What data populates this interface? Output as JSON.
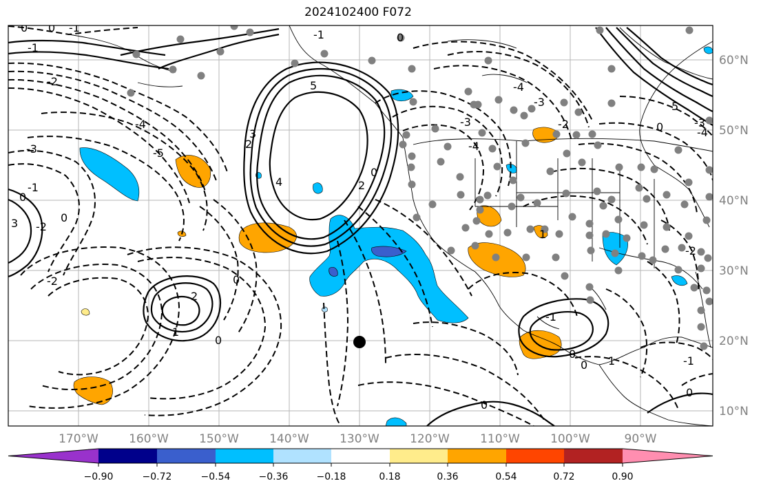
{
  "title": "2024102400 F072",
  "map": {
    "lon_labels": [
      "170°W",
      "160°W",
      "150°W",
      "140°W",
      "130°W",
      "120°W",
      "110°W",
      "100°W",
      "90°W"
    ],
    "lat_labels": [
      "60°N",
      "50°N",
      "40°N",
      "30°N",
      "20°N",
      "10°N"
    ],
    "marker": "storm-center-dot"
  },
  "colorbar": {
    "colors": [
      "#9932cc",
      "#00008b",
      "#3a5fcd",
      "#00bfff",
      "#b0e2ff",
      "#ffffff",
      "#ffec8b",
      "#ffa500",
      "#ff4500",
      "#b22222",
      "#ff8eb0"
    ],
    "ticks": [
      "−0.90",
      "−0.72",
      "−0.54",
      "−0.36",
      "−0.18",
      "0.18",
      "0.36",
      "0.54",
      "0.72",
      "0.90"
    ]
  },
  "contour_labels": [
    {
      "text": "-1",
      "group": "nw"
    },
    {
      "text": "-2",
      "group": "nw"
    },
    {
      "text": "-3",
      "group": "nw"
    },
    {
      "text": "-4",
      "group": "nw"
    },
    {
      "text": "-5",
      "group": "nw"
    },
    {
      "text": "-1",
      "group": "nw"
    },
    {
      "text": "0",
      "group": "w"
    },
    {
      "text": "-2",
      "group": "w"
    },
    {
      "text": "3",
      "group": "w"
    },
    {
      "text": "0",
      "group": "w"
    },
    {
      "text": "5",
      "group": "gulf-alaska-high"
    },
    {
      "text": "4",
      "group": "gulf-alaska-high"
    },
    {
      "text": "3",
      "group": "gulf-alaska-high"
    },
    {
      "text": "2",
      "group": "gulf-alaska-high"
    },
    {
      "text": "2",
      "group": "gulf-alaska-high"
    },
    {
      "text": "0",
      "group": "gulf-alaska-high"
    },
    {
      "text": "-2",
      "group": "central-pacific"
    },
    {
      "text": "2",
      "group": "central-pacific"
    },
    {
      "text": "1",
      "group": "central-pacific"
    },
    {
      "text": "0",
      "group": "central-pacific"
    },
    {
      "text": "0",
      "group": "central-pacific"
    },
    {
      "text": "-3",
      "group": "western-us"
    },
    {
      "text": "-4",
      "group": "western-us"
    },
    {
      "text": "-4",
      "group": "western-us"
    },
    {
      "text": "-3",
      "group": "western-us"
    },
    {
      "text": "-2",
      "group": "western-us"
    },
    {
      "text": "0",
      "group": "western-us"
    },
    {
      "text": "-1",
      "group": "western-us"
    },
    {
      "text": "0",
      "group": "eastern-us"
    },
    {
      "text": "-3",
      "group": "eastern-us"
    },
    {
      "text": "-4",
      "group": "eastern-us"
    },
    {
      "text": "5",
      "group": "eastern-us"
    },
    {
      "text": "-1",
      "group": "mexico"
    },
    {
      "text": "0",
      "group": "mexico"
    },
    {
      "text": "0",
      "group": "mexico"
    },
    {
      "text": "1",
      "group": "mexico"
    },
    {
      "text": "1",
      "group": "mexico"
    },
    {
      "text": "-1",
      "group": "caribbean"
    },
    {
      "text": "0",
      "group": "caribbean"
    },
    {
      "text": "0",
      "group": "south"
    },
    {
      "text": "-2",
      "group": "south"
    },
    {
      "text": "-1",
      "group": "north"
    },
    {
      "text": "0",
      "group": "north"
    },
    {
      "text": "0",
      "group": "north"
    }
  ]
}
